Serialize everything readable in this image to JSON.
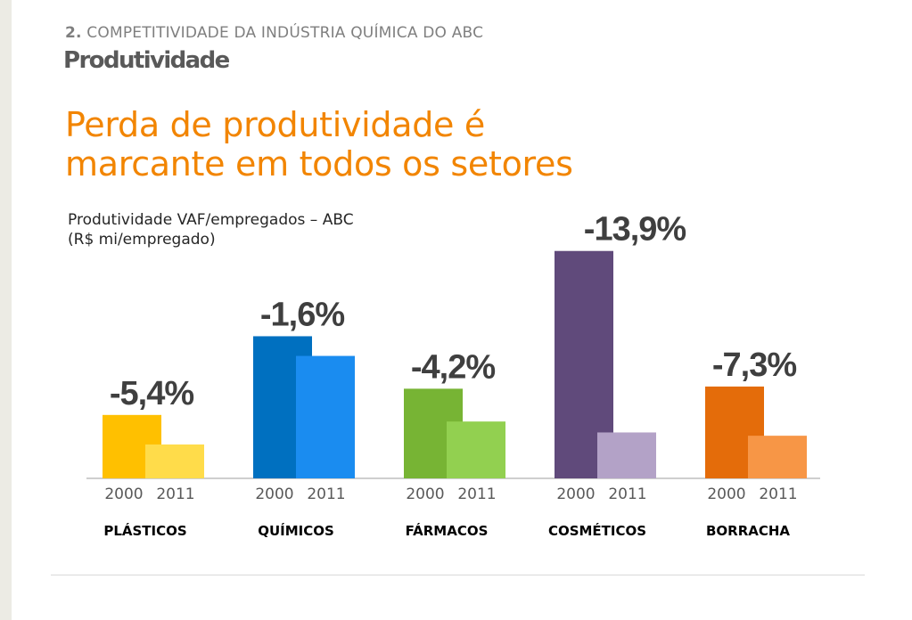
{
  "header": {
    "section_number": "2.",
    "section_title": "COMPETITIVIDADE DA INDÚSTRIA QUÍMICA DO ABC",
    "subtitle": "Produtividade"
  },
  "headline": {
    "line1": "Perda de produtividade é",
    "line2": "marcante em todos os setores"
  },
  "chart_data": {
    "type": "bar",
    "title": "Produtividade VAF/empregados – ABC",
    "unit_label": "(R$ mi/empregado)",
    "series_names": [
      "2000",
      "2011"
    ],
    "groups": [
      {
        "name": "PLÁSTICOS",
        "change": "-5,4%",
        "values": [
          58,
          31
        ],
        "colors": [
          "#ffc000",
          "#ffdc4a"
        ]
      },
      {
        "name": "QUÍMICOS",
        "change": "-1,6%",
        "values": [
          130,
          112
        ],
        "colors": [
          "#0070c0",
          "#1a8cf0"
        ]
      },
      {
        "name": "FÁRMACOS",
        "change": "-4,2%",
        "values": [
          82,
          52
        ],
        "colors": [
          "#77b434",
          "#92d050"
        ]
      },
      {
        "name": "COSMÉTICOS",
        "change": "-13,9%",
        "values": [
          208,
          42
        ],
        "colors": [
          "#604a7b",
          "#b3a2c7"
        ]
      },
      {
        "name": "BORRACHA",
        "change": "-7,3%",
        "values": [
          84,
          39
        ],
        "colors": [
          "#e46c0a",
          "#f79646"
        ]
      }
    ],
    "ylim": [
      0,
      220
    ],
    "grid": false,
    "legend": "none"
  }
}
